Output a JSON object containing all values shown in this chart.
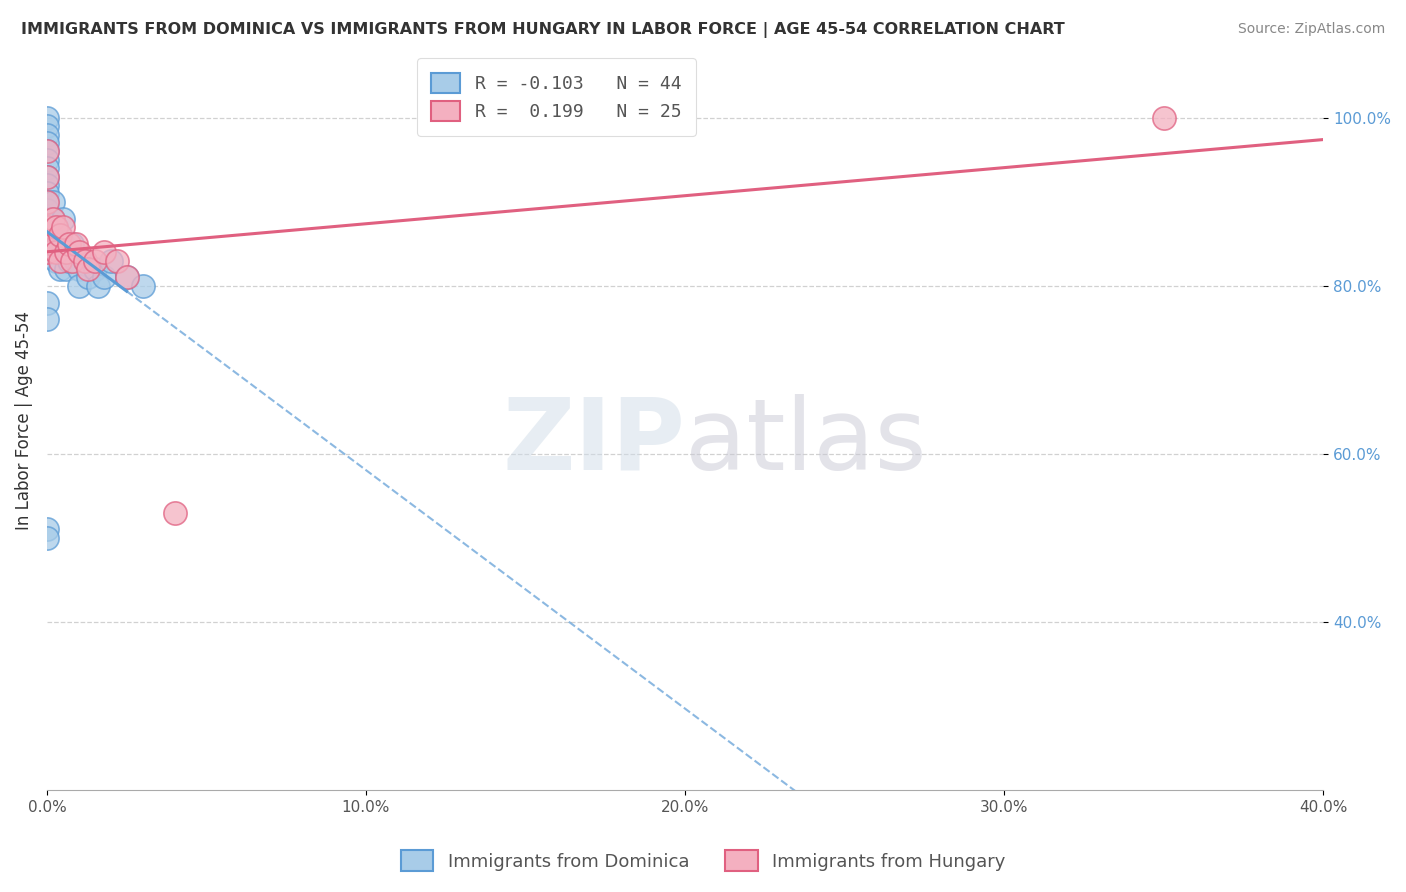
{
  "title": "IMMIGRANTS FROM DOMINICA VS IMMIGRANTS FROM HUNGARY IN LABOR FORCE | AGE 45-54 CORRELATION CHART",
  "source": "Source: ZipAtlas.com",
  "ylabel": "In Labor Force | Age 45-54",
  "xmin": 0.0,
  "xmax": 0.4,
  "ymin": 0.2,
  "ymax": 1.08,
  "yticks": [
    0.4,
    0.6,
    0.8,
    1.0
  ],
  "yticklabels": [
    "40.0%",
    "60.0%",
    "80.0%",
    "100.0%"
  ],
  "xticks": [
    0.0,
    0.1,
    0.2,
    0.3,
    0.4
  ],
  "xticklabels": [
    "0.0%",
    "10.0%",
    "20.0%",
    "30.0%",
    "40.0%"
  ],
  "legend_labels": [
    "Immigrants from Dominica",
    "Immigrants from Hungary"
  ],
  "R_dominica": -0.103,
  "N_dominica": 44,
  "R_hungary": 0.199,
  "N_hungary": 25,
  "dominica_color": "#A8CCE8",
  "hungary_color": "#F4B0C0",
  "dominica_edge": "#5B9BD5",
  "hungary_edge": "#E06080",
  "dominica_line_color": "#5B9BD5",
  "hungary_line_color": "#E06080",
  "dominica_scatter_x": [
    0.0,
    0.0,
    0.0,
    0.0,
    0.0,
    0.0,
    0.0,
    0.0,
    0.0,
    0.0,
    0.0,
    0.0,
    0.0,
    0.002,
    0.002,
    0.002,
    0.002,
    0.003,
    0.003,
    0.003,
    0.004,
    0.004,
    0.004,
    0.005,
    0.005,
    0.006,
    0.006,
    0.007,
    0.008,
    0.009,
    0.01,
    0.01,
    0.012,
    0.013,
    0.015,
    0.016,
    0.018,
    0.02,
    0.025,
    0.03,
    0.0,
    0.0,
    0.0,
    0.0
  ],
  "dominica_scatter_y": [
    1.0,
    0.99,
    0.98,
    0.97,
    0.96,
    0.95,
    0.94,
    0.93,
    0.92,
    0.91,
    0.9,
    0.89,
    0.88,
    0.9,
    0.88,
    0.86,
    0.84,
    0.87,
    0.85,
    0.83,
    0.86,
    0.84,
    0.82,
    0.88,
    0.85,
    0.84,
    0.82,
    0.83,
    0.85,
    0.83,
    0.82,
    0.8,
    0.83,
    0.81,
    0.82,
    0.8,
    0.81,
    0.83,
    0.81,
    0.8,
    0.78,
    0.76,
    0.51,
    0.5
  ],
  "hungary_scatter_x": [
    0.0,
    0.0,
    0.0,
    0.0,
    0.0,
    0.002,
    0.002,
    0.003,
    0.003,
    0.004,
    0.004,
    0.005,
    0.006,
    0.007,
    0.008,
    0.009,
    0.01,
    0.012,
    0.013,
    0.015,
    0.018,
    0.022,
    0.025,
    0.04,
    0.35
  ],
  "hungary_scatter_y": [
    0.96,
    0.93,
    0.9,
    0.87,
    0.84,
    0.88,
    0.85,
    0.87,
    0.84,
    0.86,
    0.83,
    0.87,
    0.84,
    0.85,
    0.83,
    0.85,
    0.84,
    0.83,
    0.82,
    0.83,
    0.84,
    0.83,
    0.81,
    0.53,
    1.0
  ],
  "watermark_zip": "ZIP",
  "watermark_atlas": "atlas",
  "background_color": "#ffffff",
  "grid_color": "#cccccc"
}
